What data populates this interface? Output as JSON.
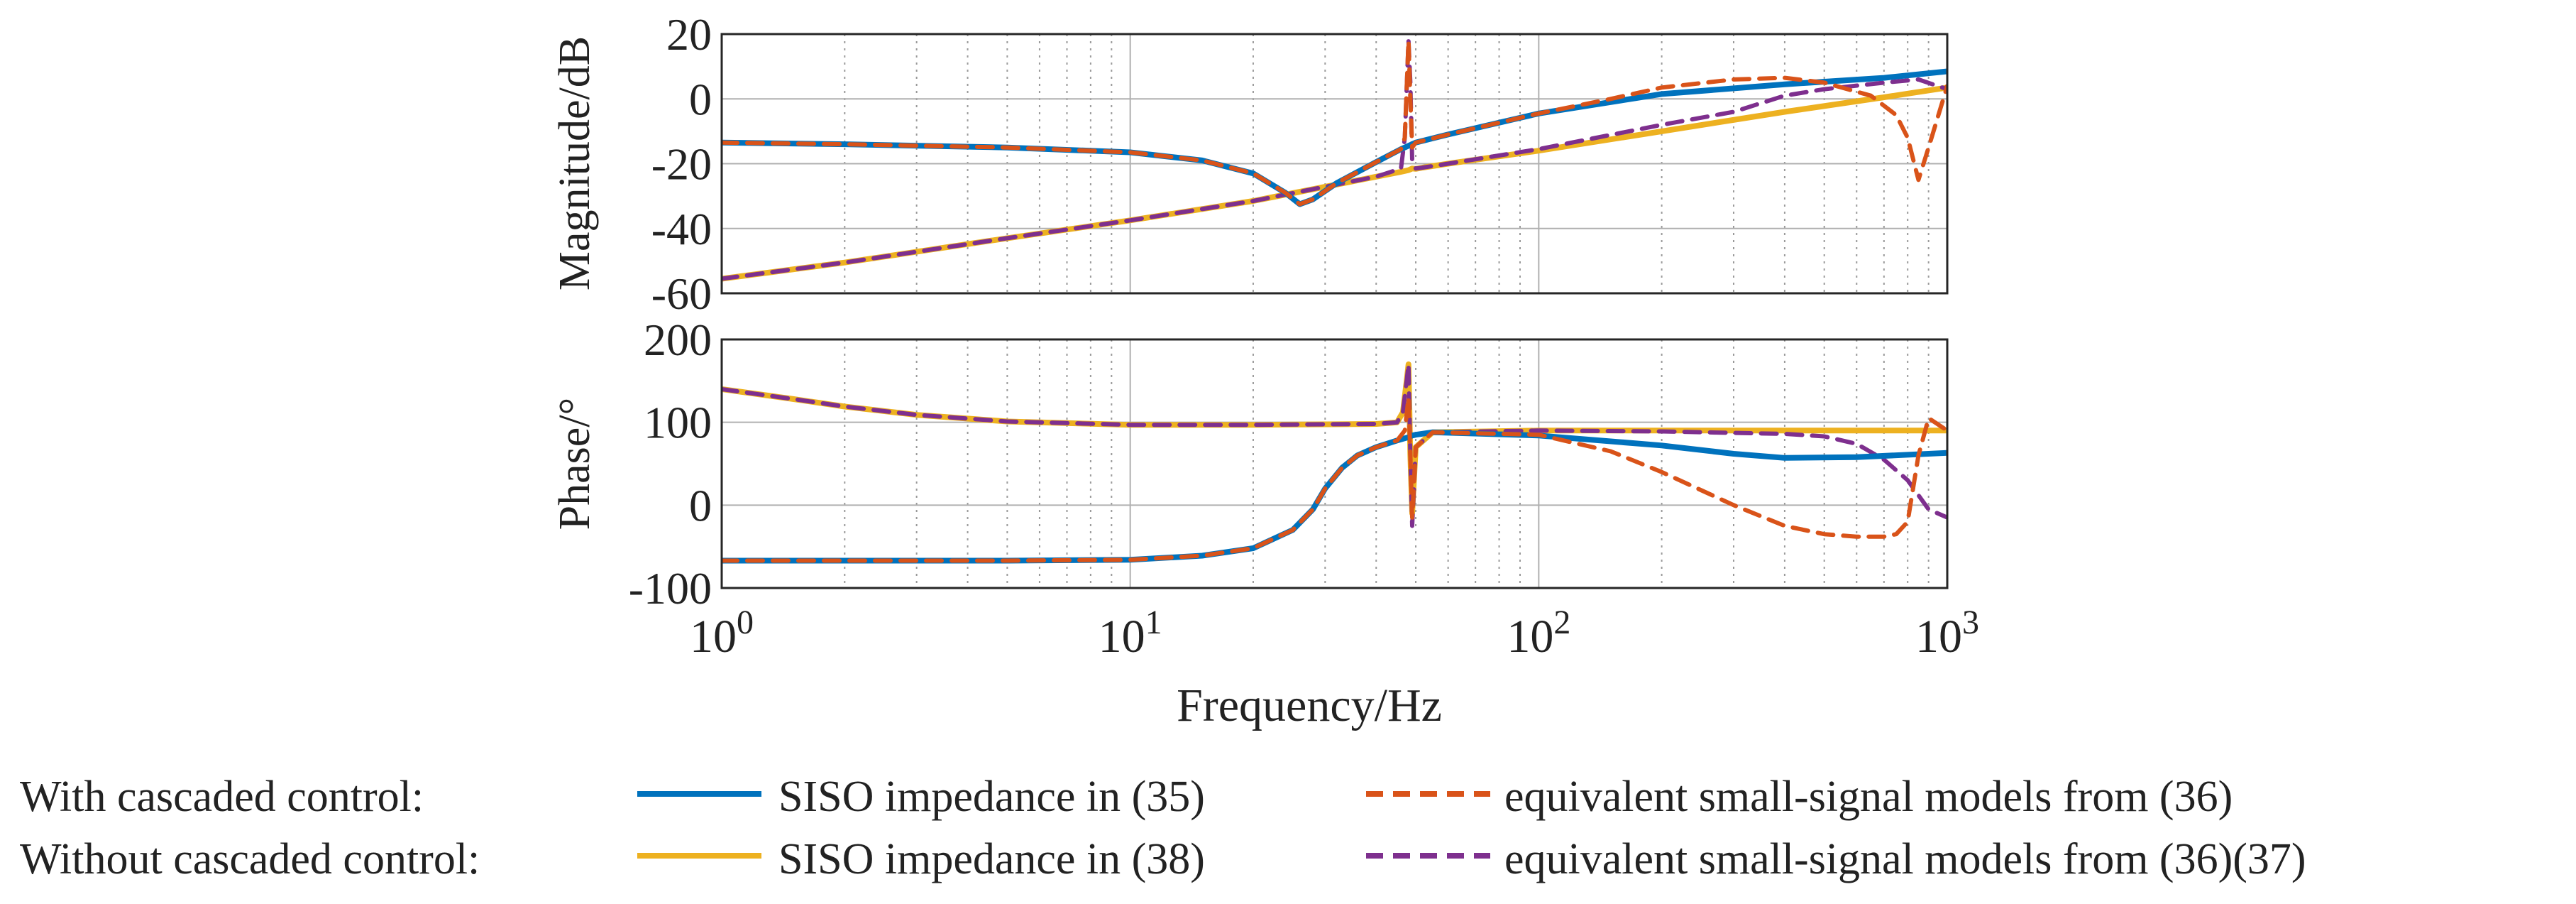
{
  "chart_data": {
    "type": "line",
    "xlabel": "Frequency/Hz",
    "xscale": "log",
    "xlim": [
      1,
      1000
    ],
    "x_ticks": [
      {
        "value": 1,
        "base": "10",
        "exp": "0"
      },
      {
        "value": 10,
        "base": "10",
        "exp": "1"
      },
      {
        "value": 100,
        "base": "10",
        "exp": "2"
      },
      {
        "value": 1000,
        "base": "10",
        "exp": "3"
      }
    ],
    "grid": true,
    "legend": {
      "placement": "bottom",
      "group_labels": [
        "With cascaded control:",
        "Without cascaded control:"
      ],
      "entries": [
        {
          "series": "with_siso",
          "label": "SISO impedance in (35)"
        },
        {
          "series": "with_eq",
          "label": "equivalent small-signal models from (36)"
        },
        {
          "series": "without_siso",
          "label": "SISO impedance in (38)"
        },
        {
          "series": "without_eq",
          "label": "equivalent small-signal models from (36)(37)"
        }
      ]
    },
    "styles": {
      "with_siso": {
        "color": "#0072BD",
        "dash": "solid"
      },
      "with_eq": {
        "color": "#D95319",
        "dash": "dashed"
      },
      "without_siso": {
        "color": "#EDB120",
        "dash": "solid"
      },
      "without_eq": {
        "color": "#7E2F8E",
        "dash": "dashed"
      }
    },
    "panels": [
      {
        "id": "magnitude",
        "ylabel": "Magnitude/dB",
        "ylim": [
          -60,
          20
        ],
        "yticks": [
          20,
          0,
          -20,
          -40,
          -60
        ],
        "series": [
          {
            "key": "without_siso",
            "x": [
              1,
              2,
              5,
              10,
              20,
              40,
              46,
              48,
              49,
              50,
              52,
              60,
              100,
              200,
              400,
              700,
              1000
            ],
            "y": [
              -55.5,
              -50.5,
              -43,
              -37.5,
              -31.5,
              -24,
              -22.5,
              -22,
              -21.5,
              -21.6,
              -21.2,
              -20,
              -16,
              -10,
              -4,
              0.5,
              3.5
            ]
          },
          {
            "key": "without_eq",
            "x": [
              1,
              2,
              5,
              10,
              20,
              40,
              46,
              47,
              48,
              48.5,
              49,
              50,
              52,
              60,
              100,
              200,
              300,
              400,
              500,
              700,
              850,
              1000
            ],
            "y": [
              -55.5,
              -50.5,
              -43,
              -37.5,
              -31.5,
              -24,
              -21.5,
              -12,
              18,
              5,
              -19,
              -21.5,
              -21.2,
              -20,
              -15.5,
              -8,
              -4,
              1,
              3,
              5,
              6,
              3
            ]
          },
          {
            "key": "with_siso",
            "x": [
              1,
              2,
              5,
              10,
              15,
              20,
              24,
              26,
              28,
              32,
              40,
              46,
              50,
              60,
              100,
              200,
              400,
              700,
              1000
            ],
            "y": [
              -13.5,
              -14,
              -15,
              -16.5,
              -19,
              -23,
              -29,
              -32.5,
              -31,
              -26,
              -19.5,
              -15.5,
              -13.5,
              -11,
              -4.5,
              1.5,
              4.5,
              6.5,
              8.5
            ]
          },
          {
            "key": "with_eq",
            "x": [
              1,
              2,
              5,
              10,
              15,
              20,
              24,
              26,
              28,
              32,
              40,
              46,
              47,
              48,
              48.5,
              49,
              50,
              60,
              100,
              150,
              200,
              300,
              400,
              500,
              650,
              750,
              800,
              850,
              900,
              1000
            ],
            "y": [
              -13.5,
              -14,
              -15,
              -16.5,
              -19,
              -23,
              -29,
              -32.5,
              -31,
              -26,
              -19.5,
              -15.5,
              -12,
              18,
              0,
              -15,
              -13.5,
              -11,
              -4.5,
              0,
              3.5,
              6,
              6.5,
              5,
              1,
              -5,
              -12,
              -25,
              -15,
              4
            ]
          }
        ]
      },
      {
        "id": "phase",
        "ylabel": "Phase/°",
        "ylim": [
          -100,
          200
        ],
        "yticks": [
          200,
          100,
          0,
          -100
        ],
        "series": [
          {
            "key": "without_siso",
            "x": [
              1,
              1.5,
              2,
              3,
              5,
              10,
              20,
              40,
              45,
              46.5,
              47.5,
              48,
              48.5,
              49,
              50,
              55,
              100,
              1000
            ],
            "y": [
              140,
              128,
              119,
              109,
              101,
              97,
              97,
              98,
              100,
              112,
              150,
              170,
              60,
              -10,
              70,
              88,
              90,
              90
            ]
          },
          {
            "key": "without_eq",
            "x": [
              1,
              1.5,
              2,
              3,
              5,
              10,
              20,
              40,
              45,
              46.5,
              47.5,
              48,
              48.5,
              49,
              50,
              55,
              100,
              200,
              400,
              500,
              600,
              700,
              800,
              900,
              1000
            ],
            "y": [
              140,
              128,
              119,
              109,
              101,
              97,
              97,
              98,
              100,
              112,
              150,
              170,
              60,
              -25,
              70,
              88,
              90,
              89,
              86,
              83,
              74,
              55,
              30,
              -5,
              -15
            ]
          },
          {
            "key": "with_siso",
            "x": [
              1,
              5,
              10,
              15,
              20,
              25,
              28,
              30,
              33,
              36,
              40,
              45,
              48,
              49,
              50,
              55,
              100,
              200,
              300,
              400,
              600,
              1000
            ],
            "y": [
              -67,
              -67,
              -66,
              -61,
              -52,
              -30,
              -5,
              20,
              45,
              60,
              70,
              78,
              82,
              84,
              85,
              88,
              84,
              72,
              62,
              57,
              58,
              63
            ]
          },
          {
            "key": "with_eq",
            "x": [
              1,
              5,
              10,
              15,
              20,
              25,
              28,
              30,
              33,
              36,
              40,
              45,
              47,
              48,
              48.5,
              49,
              50,
              55,
              100,
              150,
              200,
              300,
              400,
              500,
              600,
              700,
              750,
              800,
              850,
              900,
              1000
            ],
            "y": [
              -67,
              -67,
              -66,
              -61,
              -52,
              -30,
              -5,
              20,
              45,
              60,
              70,
              78,
              90,
              130,
              60,
              -15,
              70,
              88,
              85,
              65,
              40,
              0,
              -25,
              -35,
              -38,
              -38,
              -35,
              -20,
              60,
              105,
              90
            ]
          }
        ]
      }
    ]
  }
}
